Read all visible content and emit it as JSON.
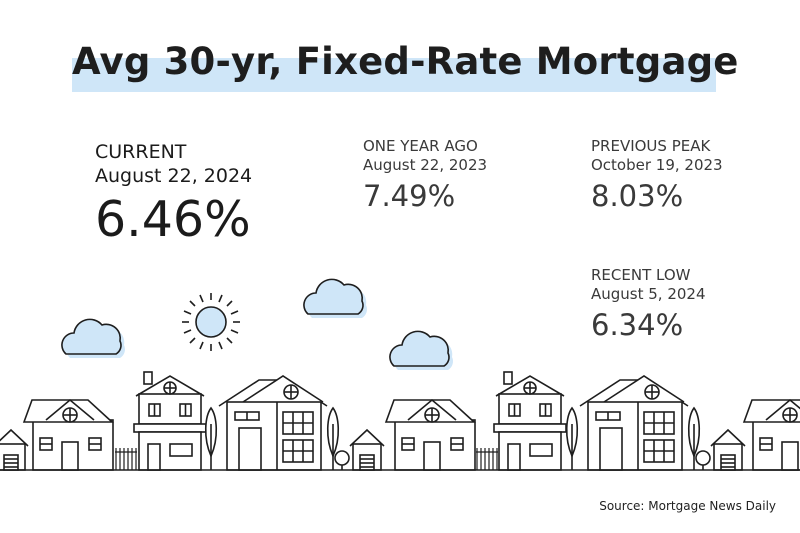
{
  "title": "Avg 30-yr, Fixed-Rate Mortgage",
  "current": {
    "label": "CURRENT",
    "date": "August 22, 2024",
    "rate": "6.46%"
  },
  "one_year_ago": {
    "label": "ONE YEAR AGO",
    "date": "August 22, 2023",
    "rate": "7.49%"
  },
  "previous_peak": {
    "label": "PREVIOUS PEAK",
    "date": "October 19, 2023",
    "rate": "8.03%"
  },
  "recent_low": {
    "label": "RECENT LOW",
    "date": "August 5, 2024",
    "rate": "6.34%"
  },
  "source": "Source: Mortgage News Daily",
  "colors": {
    "highlight": "#cfe6f8",
    "cloud": "#cfe6f8",
    "line": "#1e1e1e"
  },
  "icons": [
    "sun-icon",
    "cloud-icon",
    "house-icon",
    "tree-icon"
  ]
}
